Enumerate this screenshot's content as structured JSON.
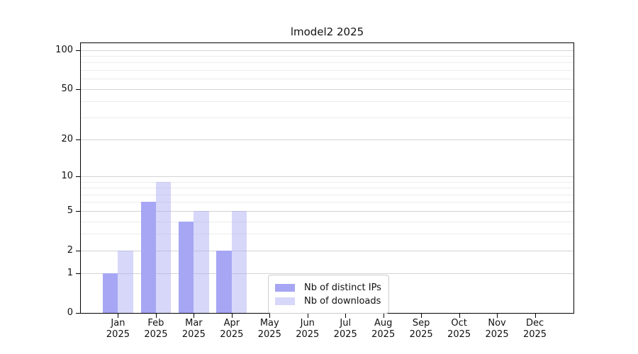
{
  "chart_data": {
    "type": "bar",
    "title": "lmodel2 2025",
    "categories": [
      "Jan",
      "Feb",
      "Mar",
      "Apr",
      "May",
      "Jun",
      "Jul",
      "Aug",
      "Sep",
      "Oct",
      "Nov",
      "Dec"
    ],
    "year_label": "2025",
    "series": [
      {
        "name": "Nb of distinct IPs",
        "fill": "#a6a6f4",
        "values": [
          1,
          6,
          4,
          2,
          0,
          0,
          0,
          0,
          0,
          0,
          0,
          0
        ]
      },
      {
        "name": "Nb of downloads",
        "fill": "rgba(166,166,244,0.45)",
        "values": [
          2,
          9,
          5,
          5,
          0,
          0,
          0,
          0,
          0,
          0,
          0,
          0
        ]
      }
    ],
    "y_axis": {
      "scale": "log10(value+1)",
      "max": 113,
      "ticks": [
        0,
        1,
        2,
        5,
        10,
        20,
        50,
        100
      ],
      "minor_gridlines": [
        3,
        4,
        6,
        7,
        8,
        9,
        30,
        40,
        60,
        70,
        80,
        90
      ]
    },
    "grid": true,
    "legend_position": "lower center",
    "colors": {
      "spine": "#000000",
      "major_grid": "#d4d4d4",
      "minor_grid": "#ececec"
    }
  }
}
